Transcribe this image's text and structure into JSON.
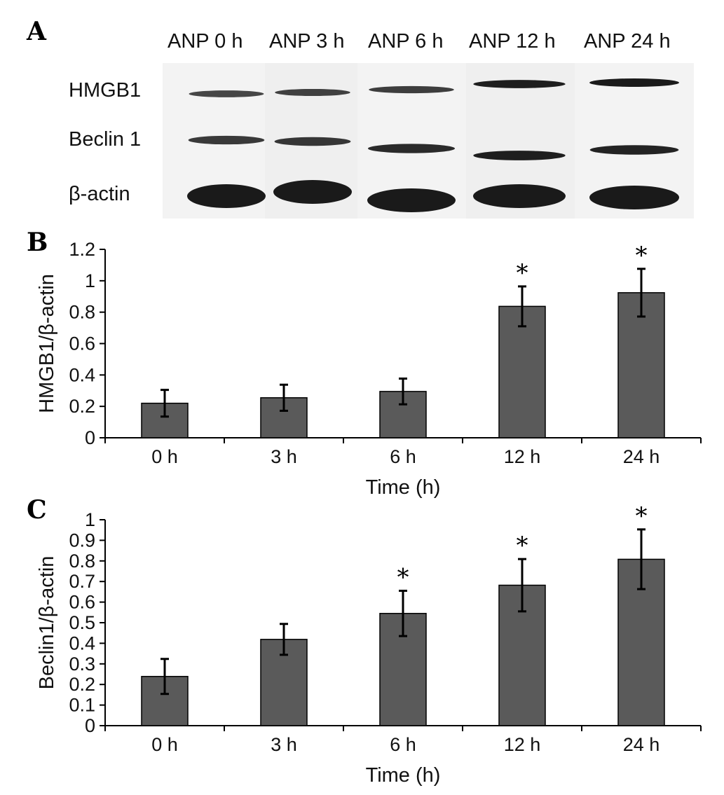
{
  "panels": {
    "a": "A",
    "b": "B",
    "c": "C"
  },
  "blot": {
    "lanes": [
      "ANP 0 h",
      "ANP 3 h",
      "ANP 6 h",
      "ANP 12 h",
      "ANP 24 h"
    ],
    "rows": [
      "HMGB1",
      "Beclin 1",
      "β-actin"
    ],
    "band_intensity": {
      "HMGB1": [
        0.55,
        0.6,
        0.65,
        0.95,
        1.0
      ],
      "Beclin 1": [
        0.7,
        0.72,
        0.85,
        0.95,
        0.9
      ],
      "β-actin": [
        1.0,
        1.0,
        1.0,
        1.0,
        1.0
      ]
    },
    "band_color": "#1a1a1a"
  },
  "chart_data": [
    {
      "type": "bar",
      "categories": [
        "0 h",
        "3 h",
        "6 h",
        "12 h",
        "24 h"
      ],
      "values": [
        0.22,
        0.255,
        0.295,
        0.837,
        0.924
      ],
      "errors": [
        0.085,
        0.083,
        0.082,
        0.127,
        0.152
      ],
      "significant": [
        false,
        false,
        false,
        true,
        true
      ],
      "significance_marker": "*",
      "xlabel": "Time (h)",
      "ylabel": "HMGB1/β-actin",
      "ylim": [
        0,
        1.2
      ],
      "yticks": [
        "0",
        "0.2",
        "0.4",
        "0.6",
        "0.8",
        "1",
        "1.2"
      ],
      "bar_color": "#5a5a5a",
      "grid": false
    },
    {
      "type": "bar",
      "categories": [
        "0 h",
        "3 h",
        "6 h",
        "12 h",
        "24 h"
      ],
      "values": [
        0.239,
        0.419,
        0.545,
        0.682,
        0.808
      ],
      "errors": [
        0.085,
        0.075,
        0.11,
        0.127,
        0.145
      ],
      "significant": [
        false,
        false,
        true,
        true,
        true
      ],
      "significance_marker": "*",
      "xlabel": "Time (h)",
      "ylabel": "Beclin1/β-actin",
      "ylim": [
        0,
        1
      ],
      "yticks": [
        "0",
        "0.1",
        "0.2",
        "0.3",
        "0.4",
        "0.5",
        "0.6",
        "0.7",
        "0.8",
        "0.9",
        "1"
      ],
      "bar_color": "#5a5a5a",
      "grid": false
    }
  ]
}
